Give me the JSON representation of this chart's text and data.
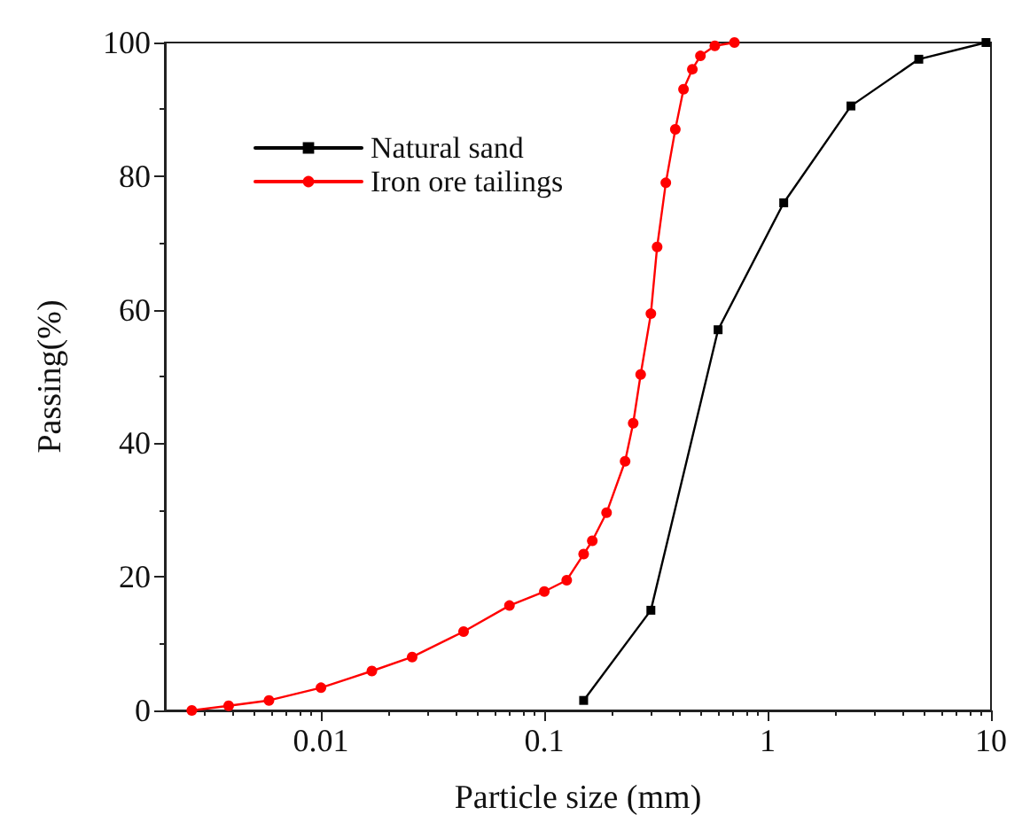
{
  "chart_data": {
    "type": "line",
    "xlabel": "Particle size (mm)",
    "ylabel": "Passing(%)",
    "log": "x",
    "xlim": [
      0.002,
      10
    ],
    "xticks": [
      0.01,
      0.1,
      1,
      10
    ],
    "ylim": [
      0,
      100
    ],
    "yticks": [
      0,
      20,
      40,
      60,
      80,
      100
    ],
    "grid": false,
    "legend": "top left",
    "line_style": "solid",
    "series": [
      {
        "name": "Natural sand",
        "color": "#000000",
        "marker": "square",
        "x": [
          0.15,
          0.3,
          0.6,
          1.18,
          2.36,
          4.75,
          9.5
        ],
        "values": [
          1.5,
          15,
          57,
          76,
          90.5,
          97.5,
          100
        ]
      },
      {
        "name": "Iron ore tailings",
        "color": "#ff0000",
        "marker": "circle",
        "x": [
          0.00264,
          0.00386,
          0.00585,
          0.01,
          0.0169,
          0.0256,
          0.0435,
          0.0698,
          0.1,
          0.126,
          0.15,
          0.164,
          0.19,
          0.23,
          0.25,
          0.27,
          0.3,
          0.32,
          0.35,
          0.386,
          0.42,
          0.46,
          0.5,
          0.58,
          0.71
        ],
        "values": [
          0,
          0.7,
          1.5,
          3.4,
          5.9,
          8,
          11.8,
          15.7,
          17.8,
          19.5,
          23.4,
          25.4,
          29.6,
          37.3,
          43,
          50.3,
          59.4,
          69.4,
          79,
          87,
          93,
          96,
          98,
          99.5,
          100
        ]
      }
    ]
  }
}
